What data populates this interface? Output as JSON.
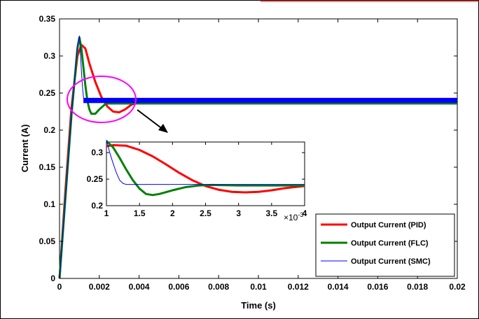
{
  "chart_data": [
    {
      "type": "line",
      "title": "",
      "xlabel": "Time (s)",
      "ylabel": "Current (A)",
      "xlim": [
        0,
        0.02
      ],
      "ylim": [
        0,
        0.35
      ],
      "xticks": [
        "0",
        "0.002",
        "0.004",
        "0.006",
        "0.008",
        "0.01",
        "0.012",
        "0.014",
        "0.016",
        "0.018",
        "0.02"
      ],
      "yticks": [
        "0",
        "0.05",
        "0.1",
        "0.15",
        "0.2",
        "0.25",
        "0.3",
        "0.35"
      ],
      "grid": false,
      "legend_position": "bottom-right",
      "series": [
        {
          "name": "Output Current (PID)",
          "color": "#ff0000",
          "x": [
            0,
            0.0003,
            0.0006,
            0.0009,
            0.0011,
            0.0013,
            0.0015,
            0.0018,
            0.0021,
            0.0024,
            0.0027,
            0.003,
            0.0033,
            0.0036,
            0.004,
            0.0045,
            0.005,
            0.006,
            0.008,
            0.01,
            0.012,
            0.014,
            0.016,
            0.018,
            0.02
          ],
          "y": [
            0,
            0.12,
            0.23,
            0.3,
            0.315,
            0.31,
            0.29,
            0.265,
            0.245,
            0.232,
            0.225,
            0.224,
            0.228,
            0.234,
            0.238,
            0.239,
            0.239,
            0.239,
            0.239,
            0.239,
            0.239,
            0.239,
            0.239,
            0.239,
            0.239
          ]
        },
        {
          "name": "Output Current (FLC)",
          "color": "#008000",
          "x": [
            0,
            0.0003,
            0.0006,
            0.0009,
            0.001,
            0.0011,
            0.0012,
            0.0013,
            0.0014,
            0.0015,
            0.0016,
            0.0018,
            0.002,
            0.0023,
            0.0026,
            0.003,
            0.004,
            0.006,
            0.008,
            0.01,
            0.012,
            0.014,
            0.016,
            0.018,
            0.02
          ],
          "y": [
            0,
            0.11,
            0.22,
            0.31,
            0.325,
            0.31,
            0.285,
            0.26,
            0.24,
            0.228,
            0.222,
            0.222,
            0.228,
            0.235,
            0.238,
            0.238,
            0.238,
            0.238,
            0.238,
            0.238,
            0.238,
            0.238,
            0.238,
            0.238,
            0.238
          ]
        },
        {
          "name": "Output Current (SMC)",
          "color": "#0000ff",
          "x": [
            0,
            0.0003,
            0.0006,
            0.0009,
            0.001,
            0.00105,
            0.0011,
            0.00115,
            0.0012,
            0.00125,
            0.002,
            0.004,
            0.006,
            0.008,
            0.01,
            0.012,
            0.014,
            0.016,
            0.018,
            0.02
          ],
          "y": [
            0,
            0.11,
            0.22,
            0.315,
            0.327,
            0.305,
            0.28,
            0.26,
            0.245,
            0.24,
            0.24,
            0.24,
            0.24,
            0.24,
            0.24,
            0.24,
            0.24,
            0.24,
            0.24,
            0.24
          ]
        }
      ]
    },
    {
      "type": "line",
      "title": "",
      "xlabel": "",
      "ylabel": "",
      "xlim": [
        1,
        4
      ],
      "ylim": [
        0.2,
        0.32
      ],
      "xticks": [
        "1",
        "1.5",
        "2",
        "2.5",
        "3",
        "3.5",
        "4"
      ],
      "yticks": [
        "0.2",
        "0.25",
        "0.3"
      ],
      "x_exponent_base": "×10",
      "x_exponent_power": "-3",
      "grid": false,
      "series": [
        {
          "name": "Output Current (PID)",
          "color": "#ff0000",
          "x": [
            1,
            1.1,
            1.3,
            1.5,
            1.7,
            1.9,
            2.1,
            2.3,
            2.5,
            2.7,
            2.9,
            3.1,
            3.3,
            3.5,
            3.7,
            4
          ],
          "y": [
            0.312,
            0.314,
            0.313,
            0.305,
            0.293,
            0.278,
            0.262,
            0.248,
            0.237,
            0.23,
            0.226,
            0.225,
            0.226,
            0.229,
            0.233,
            0.237
          ]
        },
        {
          "name": "Output Current (FLC)",
          "color": "#008000",
          "x": [
            1,
            1.1,
            1.2,
            1.3,
            1.4,
            1.5,
            1.6,
            1.7,
            1.8,
            2,
            2.2,
            2.4,
            2.6,
            3,
            3.5,
            4
          ],
          "y": [
            0.322,
            0.31,
            0.29,
            0.268,
            0.248,
            0.232,
            0.222,
            0.22,
            0.222,
            0.229,
            0.235,
            0.238,
            0.239,
            0.238,
            0.238,
            0.238
          ]
        },
        {
          "name": "Output Current (SMC)",
          "color": "#0000ff",
          "x": [
            1,
            1.05,
            1.1,
            1.15,
            1.2,
            1.25,
            1.3,
            1.5,
            2,
            2.5,
            3,
            3.5,
            4
          ],
          "y": [
            0.324,
            0.3,
            0.28,
            0.262,
            0.248,
            0.242,
            0.24,
            0.24,
            0.24,
            0.24,
            0.24,
            0.24,
            0.24
          ]
        }
      ]
    }
  ]
}
